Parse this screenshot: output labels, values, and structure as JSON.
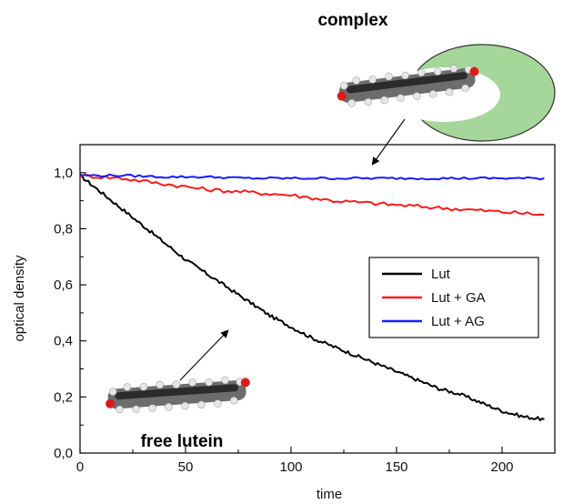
{
  "chart_data": {
    "type": "line",
    "xlabel": "time",
    "ylabel": "optical density",
    "xlim": [
      0,
      225
    ],
    "ylim": [
      0,
      1.1
    ],
    "xticks": [
      0,
      50,
      100,
      150,
      200
    ],
    "yticks": [
      0.0,
      0.2,
      0.4,
      0.6,
      0.8,
      1.0
    ],
    "ytick_labels": [
      "0,0",
      "0,2",
      "0,4",
      "0,6",
      "0,8",
      "1,0"
    ],
    "grid": false,
    "legend_position": "right",
    "annotations": [
      "complex",
      "free lutein"
    ],
    "series": [
      {
        "name": "Lut",
        "color": "#000000",
        "x": [
          0,
          10,
          20,
          30,
          40,
          50,
          60,
          70,
          80,
          90,
          100,
          110,
          120,
          130,
          140,
          150,
          160,
          170,
          180,
          190,
          200,
          210,
          220
        ],
        "y": [
          0.99,
          0.93,
          0.87,
          0.81,
          0.75,
          0.69,
          0.64,
          0.59,
          0.54,
          0.49,
          0.45,
          0.41,
          0.38,
          0.35,
          0.32,
          0.29,
          0.26,
          0.23,
          0.21,
          0.18,
          0.15,
          0.13,
          0.12
        ]
      },
      {
        "name": "Lut + GA",
        "color": "#ff1a1a",
        "x": [
          0,
          20,
          40,
          60,
          80,
          100,
          120,
          140,
          160,
          180,
          200,
          220
        ],
        "y": [
          0.99,
          0.98,
          0.96,
          0.94,
          0.93,
          0.92,
          0.9,
          0.89,
          0.88,
          0.87,
          0.86,
          0.85
        ]
      },
      {
        "name": "Lut + AG",
        "color": "#1a1aff",
        "x": [
          0,
          20,
          40,
          60,
          80,
          100,
          120,
          140,
          160,
          180,
          200,
          220
        ],
        "y": [
          0.99,
          0.99,
          0.985,
          0.985,
          0.98,
          0.98,
          0.98,
          0.98,
          0.98,
          0.98,
          0.98,
          0.98
        ]
      }
    ]
  }
}
